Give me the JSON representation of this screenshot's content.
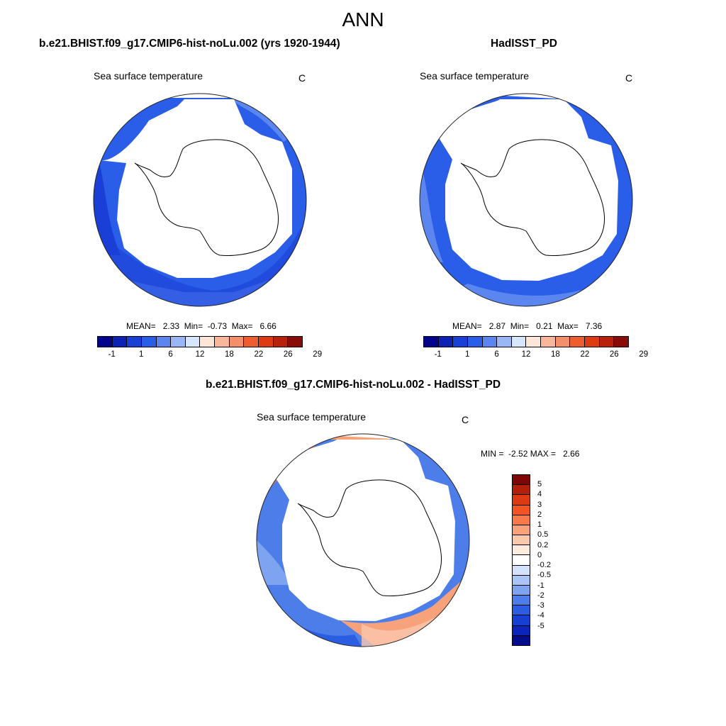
{
  "figure": {
    "title": "ANN"
  },
  "panels": [
    {
      "title": "b.e21.BHIST.f09_g17.CMIP6-hist-noLu.002 (yrs 1920-1944)",
      "variable": "Sea surface temperature",
      "units": "C",
      "stats": {
        "mean_label": "MEAN=",
        "mean": "2.33",
        "min_label": "Min=",
        "min": "-0.73",
        "max_label": "Max=",
        "max": "6.66"
      }
    },
    {
      "title": "HadISST_PD",
      "variable": "Sea surface temperature",
      "units": "C",
      "stats": {
        "mean_label": "MEAN=",
        "mean": "2.87",
        "min_label": "Min=",
        "min": "0.21",
        "max_label": "Max=",
        "max": "7.36"
      }
    },
    {
      "title": "b.e21.BHIST.f09_g17.CMIP6-hist-noLu.002 - HadISST_PD",
      "variable": "Sea surface temperature",
      "units": "C",
      "stats": {
        "min_label": "MIN =",
        "min": "-2.52",
        "max_label": "MAX =",
        "max": "2.66"
      }
    }
  ],
  "colorbar_sst": {
    "tick_labels": [
      "-1",
      "1",
      "6",
      "12",
      "18",
      "22",
      "26",
      "29"
    ],
    "colors": [
      "#04048a",
      "#0b22b4",
      "#1a3fd6",
      "#2a5de8",
      "#5b86f0",
      "#9bb6f5",
      "#d8e6fb",
      "#fce6d8",
      "#f8b79a",
      "#f48f6c",
      "#ee5d2e",
      "#df3b12",
      "#b8210a",
      "#8a0c08"
    ]
  },
  "colorbar_diff": {
    "tick_labels": [
      "5",
      "4",
      "3",
      "2",
      "1",
      "0.5",
      "0.2",
      "0",
      "-0.2",
      "-0.5",
      "-1",
      "-2",
      "-3",
      "-4",
      "-5"
    ],
    "colors": [
      "#7e0606",
      "#b2200b",
      "#dc3a12",
      "#f35424",
      "#f77a4a",
      "#f8a27c",
      "#fbc8ae",
      "#fdebe0",
      "#ffffff",
      "#d4e2fb",
      "#aac4f6",
      "#7ea3f0",
      "#4d7de8",
      "#2a5de2",
      "#1740d2",
      "#0a25b8",
      "#030d8c"
    ]
  }
}
